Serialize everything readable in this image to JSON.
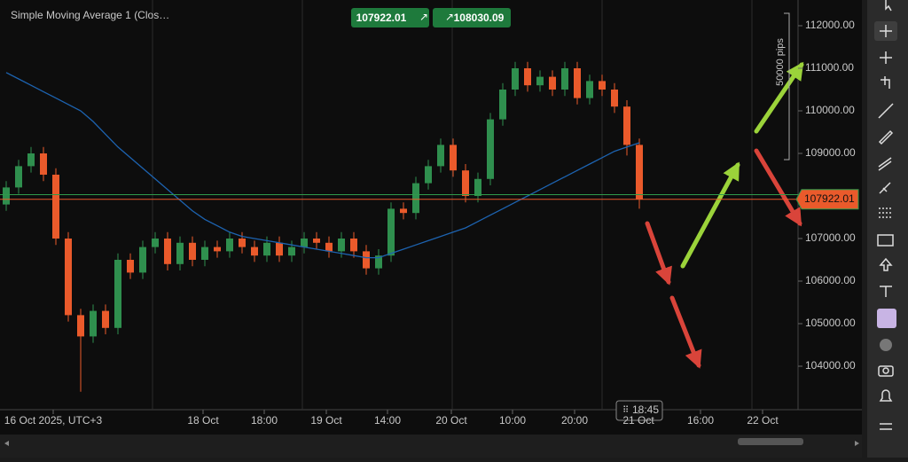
{
  "chart_data": {
    "type": "candlestick",
    "title": "Simple Moving Average 1 (Clos…",
    "bid": 107922.01,
    "ask": 108030.09,
    "pips_label": "50000 pips",
    "crosshair_time": "18:45",
    "x_labels": [
      "16 Oct 2025, UTC+3",
      "18 Oct",
      "18:00",
      "19 Oct",
      "14:00",
      "20 Oct",
      "10:00",
      "20:00",
      "21 Oct",
      "16:00",
      "22 Oct"
    ],
    "ylim": [
      102979,
      112604
    ],
    "yticks": [
      {
        "value": 112000,
        "label": "112000.00"
      },
      {
        "value": 111000,
        "label": "111000.00"
      },
      {
        "value": 110000,
        "label": "110000.00"
      },
      {
        "value": 109000,
        "label": "109000.00"
      },
      {
        "value": 108000,
        "label": "108000.00"
      },
      {
        "value": 107000,
        "label": "107000.00"
      },
      {
        "value": 106000,
        "label": "106000.00"
      },
      {
        "value": 105000,
        "label": "105000.00"
      },
      {
        "value": 104000,
        "label": "104000.00"
      }
    ],
    "up_color": "#2f8f4e",
    "down_color": "#ea5a2b",
    "open": [
      107800,
      108200,
      108700,
      109000,
      108500,
      107000,
      105200,
      104700,
      105300,
      104900,
      106500,
      106200,
      106800,
      107000,
      106400,
      106900,
      106500,
      106800,
      106700,
      107000,
      106800,
      106600,
      106900,
      106600,
      106800,
      107000,
      106900,
      106700,
      107000,
      106700,
      106300,
      106600,
      107700,
      107600,
      108300,
      108700,
      109200,
      108600,
      108000,
      108400,
      109800,
      110500,
      111000,
      110600,
      110800,
      110500,
      111000,
      110300,
      110700,
      110500,
      110100,
      109200
    ],
    "high": [
      108350,
      108850,
      109150,
      109150,
      108650,
      107150,
      105350,
      105450,
      105450,
      106650,
      106650,
      106950,
      107150,
      107150,
      107050,
      107050,
      106950,
      106950,
      107150,
      107150,
      106950,
      107050,
      107050,
      106950,
      107150,
      107150,
      107050,
      107150,
      107150,
      106850,
      106750,
      107850,
      107850,
      108450,
      108850,
      109350,
      109350,
      108750,
      108550,
      109950,
      110650,
      111150,
      111150,
      110950,
      110950,
      111150,
      111150,
      110850,
      110850,
      110650,
      110250,
      109350
    ],
    "low": [
      107650,
      108050,
      108550,
      108350,
      106850,
      105050,
      103400,
      104550,
      104750,
      104750,
      106050,
      106050,
      106650,
      106250,
      106250,
      106350,
      106350,
      106550,
      106550,
      106650,
      106450,
      106450,
      106450,
      106450,
      106650,
      106750,
      106550,
      106550,
      106550,
      106150,
      106150,
      106450,
      107450,
      107450,
      108150,
      108550,
      108450,
      107850,
      107850,
      108250,
      109650,
      110350,
      110450,
      110450,
      110350,
      110350,
      110150,
      110150,
      110350,
      109950,
      108950,
      107700
    ],
    "close": [
      108200,
      108700,
      109000,
      108500,
      107000,
      105200,
      104700,
      105300,
      104900,
      106500,
      106200,
      106800,
      107000,
      106400,
      106900,
      106500,
      106800,
      106700,
      107000,
      106800,
      106600,
      106900,
      106600,
      106800,
      107000,
      106900,
      106700,
      107000,
      106700,
      106300,
      106600,
      107700,
      107600,
      108300,
      108700,
      109200,
      108600,
      108000,
      108400,
      109800,
      110500,
      111000,
      110600,
      110800,
      110500,
      111000,
      110300,
      110700,
      110500,
      110100,
      109200,
      107922.01
    ],
    "sma": {
      "color": "#1d63b0",
      "values": [
        110900,
        110750,
        110600,
        110450,
        110300,
        110150,
        110000,
        109750,
        109450,
        109150,
        108900,
        108650,
        108400,
        108150,
        107900,
        107650,
        107450,
        107300,
        107150,
        107050,
        107000,
        106950,
        106900,
        106850,
        106800,
        106750,
        106700,
        106650,
        106600,
        106550,
        106550,
        106650,
        106750,
        106850,
        106950,
        107050,
        107150,
        107250,
        107400,
        107550,
        107700,
        107850,
        108000,
        108150,
        108300,
        108450,
        108600,
        108750,
        108900,
        109050,
        109150,
        109250
      ]
    }
  }
}
